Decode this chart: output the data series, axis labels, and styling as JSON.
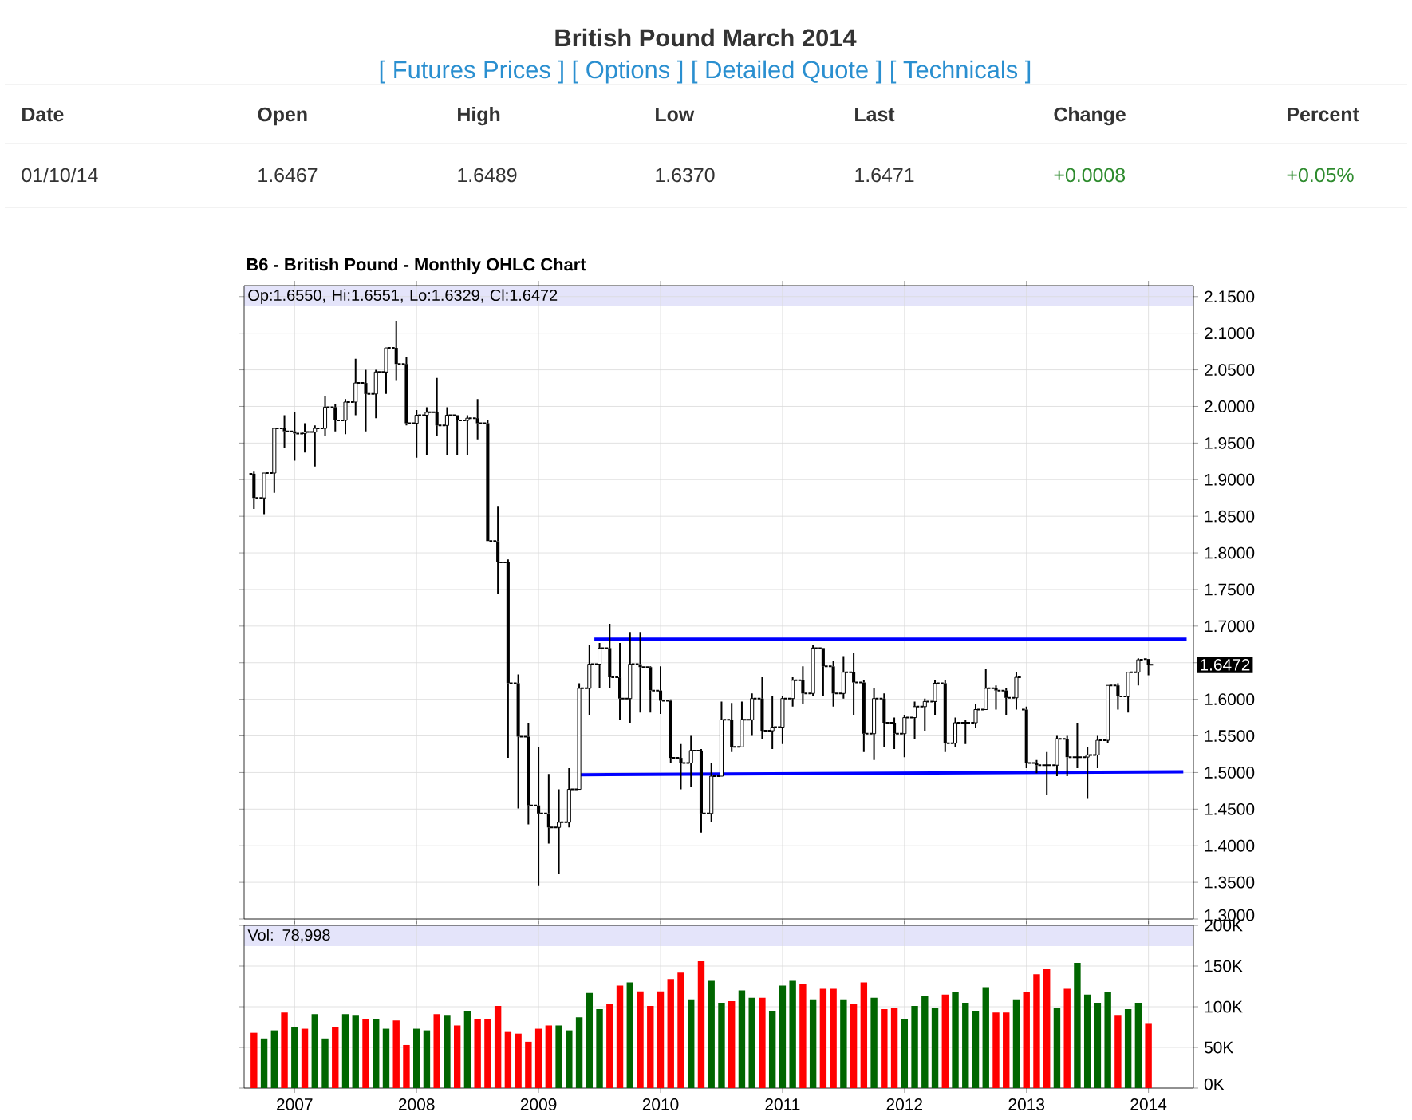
{
  "chart_data": [
    {
      "type": "other",
      "title": "British Pound March 2014",
      "subtitle": "[ Futures Prices ] [ Options ] [ Detailed Quote ] [ Technicals ]",
      "annotations": [
        "Date",
        "Open",
        "High",
        "Low",
        "Last",
        "Change",
        "Percent",
        "01/10/14",
        "1.6467",
        "1.6489",
        "1.6370",
        "1.6471",
        "+0.0008",
        "+0.05%"
      ]
    },
    {
      "type": "candlestick",
      "title": "B6 - British Pound - Monthly OHLC Chart",
      "color": "#000000",
      "x": [
        "2006-09",
        "2006-10",
        "2006-11",
        "2006-12",
        "2007-01",
        "2007-02",
        "2007-03",
        "2007-04",
        "2007-05",
        "2007-06",
        "2007-07",
        "2007-08",
        "2007-09",
        "2007-10",
        "2007-11",
        "2007-12",
        "2008-01",
        "2008-02",
        "2008-03",
        "2008-04",
        "2008-05",
        "2008-06",
        "2008-07",
        "2008-08",
        "2008-09",
        "2008-10",
        "2008-11",
        "2008-12",
        "2009-01",
        "2009-02",
        "2009-03",
        "2009-04",
        "2009-05",
        "2009-06",
        "2009-07",
        "2009-08",
        "2009-09",
        "2009-10",
        "2009-11",
        "2009-12",
        "2010-01",
        "2010-02",
        "2010-03",
        "2010-04",
        "2010-05",
        "2010-06",
        "2010-07",
        "2010-08",
        "2010-09",
        "2010-10",
        "2010-11",
        "2010-12",
        "2011-01",
        "2011-02",
        "2011-03",
        "2011-04",
        "2011-05",
        "2011-06",
        "2011-07",
        "2011-08",
        "2011-09",
        "2011-10",
        "2011-11",
        "2011-12",
        "2012-01",
        "2012-02",
        "2012-03",
        "2012-04",
        "2012-05",
        "2012-06",
        "2012-07",
        "2012-08",
        "2012-09",
        "2012-10",
        "2012-11",
        "2012-12",
        "2013-01",
        "2013-02",
        "2013-03",
        "2013-04",
        "2013-05",
        "2013-06",
        "2013-07",
        "2013-08",
        "2013-09",
        "2013-10",
        "2013-11",
        "2013-12",
        "2014-01"
      ],
      "ohlc": [
        [
          1.908,
          1.911,
          1.86,
          1.875
        ],
        [
          1.875,
          1.909,
          1.853,
          1.909
        ],
        [
          1.909,
          1.97,
          1.882,
          1.97
        ],
        [
          1.97,
          1.988,
          1.944,
          1.966
        ],
        [
          1.966,
          1.992,
          1.926,
          1.963
        ],
        [
          1.963,
          1.977,
          1.937,
          1.965
        ],
        [
          1.965,
          1.974,
          1.918,
          1.97
        ],
        [
          1.97,
          2.014,
          1.959,
          1.999
        ],
        [
          1.999,
          2.003,
          1.966,
          1.981
        ],
        [
          1.981,
          2.01,
          1.962,
          2.006
        ],
        [
          2.006,
          2.065,
          1.988,
          2.032
        ],
        [
          2.032,
          2.05,
          1.966,
          2.017
        ],
        [
          2.017,
          2.05,
          1.984,
          2.047
        ],
        [
          2.047,
          2.08,
          2.017,
          2.08
        ],
        [
          2.08,
          2.116,
          2.036,
          2.058
        ],
        [
          2.058,
          2.068,
          1.974,
          1.977
        ],
        [
          1.977,
          1.995,
          1.93,
          1.988
        ],
        [
          1.988,
          1.999,
          1.933,
          1.992
        ],
        [
          1.992,
          2.039,
          1.959,
          1.974
        ],
        [
          1.974,
          1.999,
          1.933,
          1.988
        ],
        [
          1.988,
          1.988,
          1.933,
          1.981
        ],
        [
          1.981,
          1.988,
          1.933,
          1.984
        ],
        [
          1.984,
          2.01,
          1.955,
          1.977
        ],
        [
          1.977,
          1.981,
          1.816,
          1.816
        ],
        [
          1.816,
          1.864,
          1.744,
          1.787
        ],
        [
          1.787,
          1.791,
          1.52,
          1.622
        ],
        [
          1.622,
          1.634,
          1.451,
          1.549
        ],
        [
          1.549,
          1.568,
          1.429,
          1.455
        ],
        [
          1.455,
          1.535,
          1.345,
          1.444
        ],
        [
          1.444,
          1.498,
          1.403,
          1.425
        ],
        [
          1.425,
          1.477,
          1.362,
          1.432
        ],
        [
          1.432,
          1.506,
          1.425,
          1.477
        ],
        [
          1.477,
          1.622,
          1.477,
          1.615
        ],
        [
          1.615,
          1.674,
          1.579,
          1.648
        ],
        [
          1.648,
          1.677,
          1.615,
          1.67
        ],
        [
          1.67,
          1.703,
          1.615,
          1.63
        ],
        [
          1.63,
          1.677,
          1.572,
          1.601
        ],
        [
          1.601,
          1.692,
          1.568,
          1.648
        ],
        [
          1.648,
          1.692,
          1.582,
          1.644
        ],
        [
          1.644,
          1.645,
          1.582,
          1.612
        ],
        [
          1.612,
          1.645,
          1.58,
          1.598
        ],
        [
          1.598,
          1.6,
          1.513,
          1.52
        ],
        [
          1.52,
          1.539,
          1.477,
          1.513
        ],
        [
          1.513,
          1.55,
          1.48,
          1.53
        ],
        [
          1.53,
          1.532,
          1.418,
          1.444
        ],
        [
          1.444,
          1.513,
          1.432,
          1.495
        ],
        [
          1.495,
          1.597,
          1.495,
          1.572
        ],
        [
          1.572,
          1.595,
          1.528,
          1.535
        ],
        [
          1.535,
          1.597,
          1.535,
          1.572
        ],
        [
          1.572,
          1.608,
          1.55,
          1.601
        ],
        [
          1.601,
          1.63,
          1.546,
          1.557
        ],
        [
          1.557,
          1.604,
          1.532,
          1.562
        ],
        [
          1.562,
          1.604,
          1.539,
          1.601
        ],
        [
          1.601,
          1.63,
          1.59,
          1.626
        ],
        [
          1.626,
          1.645,
          1.594,
          1.608
        ],
        [
          1.608,
          1.674,
          1.604,
          1.67
        ],
        [
          1.67,
          1.67,
          1.604,
          1.645
        ],
        [
          1.645,
          1.652,
          1.59,
          1.608
        ],
        [
          1.608,
          1.659,
          1.601,
          1.637
        ],
        [
          1.637,
          1.663,
          1.579,
          1.623
        ],
        [
          1.623,
          1.626,
          1.528,
          1.553
        ],
        [
          1.553,
          1.615,
          1.517,
          1.601
        ],
        [
          1.601,
          1.608,
          1.535,
          1.568
        ],
        [
          1.568,
          1.575,
          1.532,
          1.553
        ],
        [
          1.553,
          1.579,
          1.521,
          1.575
        ],
        [
          1.575,
          1.597,
          1.546,
          1.59
        ],
        [
          1.59,
          1.601,
          1.557,
          1.597
        ],
        [
          1.597,
          1.626,
          1.579,
          1.622
        ],
        [
          1.622,
          1.626,
          1.528,
          1.54
        ],
        [
          1.54,
          1.575,
          1.535,
          1.568
        ],
        [
          1.568,
          1.572,
          1.539,
          1.568
        ],
        [
          1.568,
          1.593,
          1.561,
          1.586
        ],
        [
          1.586,
          1.641,
          1.586,
          1.615
        ],
        [
          1.615,
          1.619,
          1.586,
          1.612
        ],
        [
          1.612,
          1.615,
          1.579,
          1.602
        ],
        [
          1.602,
          1.637,
          1.586,
          1.63
        ],
        [
          1.586,
          1.59,
          1.506,
          1.513
        ],
        [
          1.513,
          1.517,
          1.499,
          1.51
        ],
        [
          1.51,
          1.528,
          1.469,
          1.51
        ],
        [
          1.51,
          1.55,
          1.495,
          1.546
        ],
        [
          1.546,
          1.55,
          1.495,
          1.521
        ],
        [
          1.521,
          1.568,
          1.506,
          1.521
        ],
        [
          1.521,
          1.535,
          1.465,
          1.524
        ],
        [
          1.524,
          1.55,
          1.506,
          1.544
        ],
        [
          1.544,
          1.619,
          1.54,
          1.619
        ],
        [
          1.619,
          1.622,
          1.586,
          1.604
        ],
        [
          1.604,
          1.637,
          1.582,
          1.637
        ],
        [
          1.637,
          1.656,
          1.619,
          1.654
        ],
        [
          1.655,
          1.6551,
          1.6329,
          1.6472
        ]
      ],
      "series": [
        {
          "type": "line",
          "color": "#0000ff",
          "x": [
            "2009-06-16",
            "2014-04-24"
          ],
          "values": [
            1.682,
            1.682
          ]
        },
        {
          "type": "line",
          "color": "#0000ff",
          "x": [
            "2009-05-04",
            "2014-04-14"
          ],
          "values": [
            1.497,
            1.501
          ]
        }
      ],
      "xlim": [
        "2006-08-02",
        "2014-05-14"
      ],
      "ylim": [
        1.3,
        2.165
      ],
      "xticks": [
        "2007",
        "2008",
        "2009",
        "2010",
        "2011",
        "2012",
        "2013",
        "2014"
      ],
      "yticks": [
        {
          "value": 1.3,
          "label": "1.3000"
        },
        {
          "value": 1.35,
          "label": "1.3500"
        },
        {
          "value": 1.4,
          "label": "1.4000"
        },
        {
          "value": 1.45,
          "label": "1.4500"
        },
        {
          "value": 1.5,
          "label": "1.5000"
        },
        {
          "value": 1.55,
          "label": "1.5500"
        },
        {
          "value": 1.6,
          "label": "1.6000"
        },
        {
          "value": 1.65,
          "label": null
        },
        {
          "value": 1.7,
          "label": "1.7000"
        },
        {
          "value": 1.75,
          "label": "1.7500"
        },
        {
          "value": 1.8,
          "label": "1.8000"
        },
        {
          "value": 1.85,
          "label": "1.8500"
        },
        {
          "value": 1.9,
          "label": "1.9000"
        },
        {
          "value": 1.95,
          "label": "1.9500"
        },
        {
          "value": 2.0,
          "label": "2.0000"
        },
        {
          "value": 2.05,
          "label": "2.0500"
        },
        {
          "value": 2.1,
          "label": "2.1000"
        },
        {
          "value": 2.15,
          "label": "2.1500"
        }
      ],
      "grid": true,
      "tick_labels": "y",
      "annotations": [
        "Op:1.6550, Hi:1.6551, Lo:1.6329, Cl:1.6472",
        "1.6472"
      ]
    },
    {
      "type": "bar",
      "x": [
        "2006-09",
        "2006-10",
        "2006-11",
        "2006-12",
        "2007-01",
        "2007-02",
        "2007-03",
        "2007-04",
        "2007-05",
        "2007-06",
        "2007-07",
        "2007-08",
        "2007-09",
        "2007-10",
        "2007-11",
        "2007-12",
        "2008-01",
        "2008-02",
        "2008-03",
        "2008-04",
        "2008-05",
        "2008-06",
        "2008-07",
        "2008-08",
        "2008-09",
        "2008-10",
        "2008-11",
        "2008-12",
        "2009-01",
        "2009-02",
        "2009-03",
        "2009-04",
        "2009-05",
        "2009-06",
        "2009-07",
        "2009-08",
        "2009-09",
        "2009-10",
        "2009-11",
        "2009-12",
        "2010-01",
        "2010-02",
        "2010-03",
        "2010-04",
        "2010-05",
        "2010-06",
        "2010-07",
        "2010-08",
        "2010-09",
        "2010-10",
        "2010-11",
        "2010-12",
        "2011-01",
        "2011-02",
        "2011-03",
        "2011-04",
        "2011-05",
        "2011-06",
        "2011-07",
        "2011-08",
        "2011-09",
        "2011-10",
        "2011-11",
        "2011-12",
        "2012-01",
        "2012-02",
        "2012-03",
        "2012-04",
        "2012-05",
        "2012-06",
        "2012-07",
        "2012-08",
        "2012-09",
        "2012-10",
        "2012-11",
        "2012-12",
        "2013-01",
        "2013-02",
        "2013-03",
        "2013-04",
        "2013-05",
        "2013-06",
        "2013-07",
        "2013-08",
        "2013-09",
        "2013-10",
        "2013-11",
        "2013-12",
        "2014-01"
      ],
      "values": [
        68000,
        61000,
        71000,
        93000,
        75000,
        73000,
        91000,
        61000,
        75000,
        91000,
        89000,
        85000,
        85000,
        73000,
        83000,
        53000,
        73000,
        71000,
        91000,
        89000,
        77000,
        95000,
        85000,
        85000,
        101000,
        69000,
        67000,
        57000,
        73000,
        77000,
        77000,
        71000,
        87000,
        117000,
        97000,
        103000,
        126000,
        130000,
        119000,
        101000,
        119000,
        134000,
        142000,
        109000,
        156000,
        132000,
        105000,
        107000,
        120000,
        111000,
        111000,
        95000,
        126000,
        132000,
        128000,
        109000,
        122000,
        122000,
        109000,
        103000,
        130000,
        111000,
        97000,
        99000,
        85000,
        101000,
        113000,
        99000,
        115000,
        118000,
        105000,
        95000,
        124000,
        93000,
        93000,
        109000,
        118000,
        140000,
        146000,
        99000,
        122000,
        154000,
        115000,
        105000,
        118000,
        89000,
        97000,
        105000,
        79000
      ],
      "colors": [
        "#ff0000",
        "#006600",
        "#006600",
        "#ff0000",
        "#006600",
        "#ff0000",
        "#006600",
        "#006600",
        "#ff0000",
        "#006600",
        "#006600",
        "#ff0000",
        "#006600",
        "#006600",
        "#ff0000",
        "#ff0000",
        "#006600",
        "#006600",
        "#ff0000",
        "#006600",
        "#ff0000",
        "#006600",
        "#ff0000",
        "#ff0000",
        "#ff0000",
        "#ff0000",
        "#ff0000",
        "#ff0000",
        "#ff0000",
        "#ff0000",
        "#006600",
        "#006600",
        "#006600",
        "#006600",
        "#006600",
        "#ff0000",
        "#ff0000",
        "#006600",
        "#ff0000",
        "#ff0000",
        "#ff0000",
        "#ff0000",
        "#ff0000",
        "#006600",
        "#ff0000",
        "#006600",
        "#006600",
        "#ff0000",
        "#006600",
        "#006600",
        "#ff0000",
        "#006600",
        "#006600",
        "#006600",
        "#ff0000",
        "#006600",
        "#ff0000",
        "#ff0000",
        "#006600",
        "#ff0000",
        "#ff0000",
        "#006600",
        "#ff0000",
        "#ff0000",
        "#006600",
        "#006600",
        "#006600",
        "#006600",
        "#ff0000",
        "#006600",
        "#006600",
        "#006600",
        "#006600",
        "#ff0000",
        "#ff0000",
        "#006600",
        "#ff0000",
        "#ff0000",
        "#ff0000",
        "#006600",
        "#ff0000",
        "#006600",
        "#006600",
        "#006600",
        "#006600",
        "#ff0000",
        "#006600",
        "#006600",
        "#ff0000"
      ],
      "xlim": [
        "2006-08-02",
        "2014-05-14"
      ],
      "ylim": [
        0,
        200000
      ],
      "xticks": [
        "2007",
        "2008",
        "2009",
        "2010",
        "2011",
        "2012",
        "2013",
        "2014"
      ],
      "yticks": [
        {
          "value": 0,
          "label": "0K"
        },
        {
          "value": 50000,
          "label": "50K"
        },
        {
          "value": 100000,
          "label": "100K"
        },
        {
          "value": 150000,
          "label": "150K"
        },
        {
          "value": 200000,
          "label": "200K"
        }
      ],
      "grid": true,
      "annotations": [
        "Vol: 78,998"
      ]
    }
  ]
}
